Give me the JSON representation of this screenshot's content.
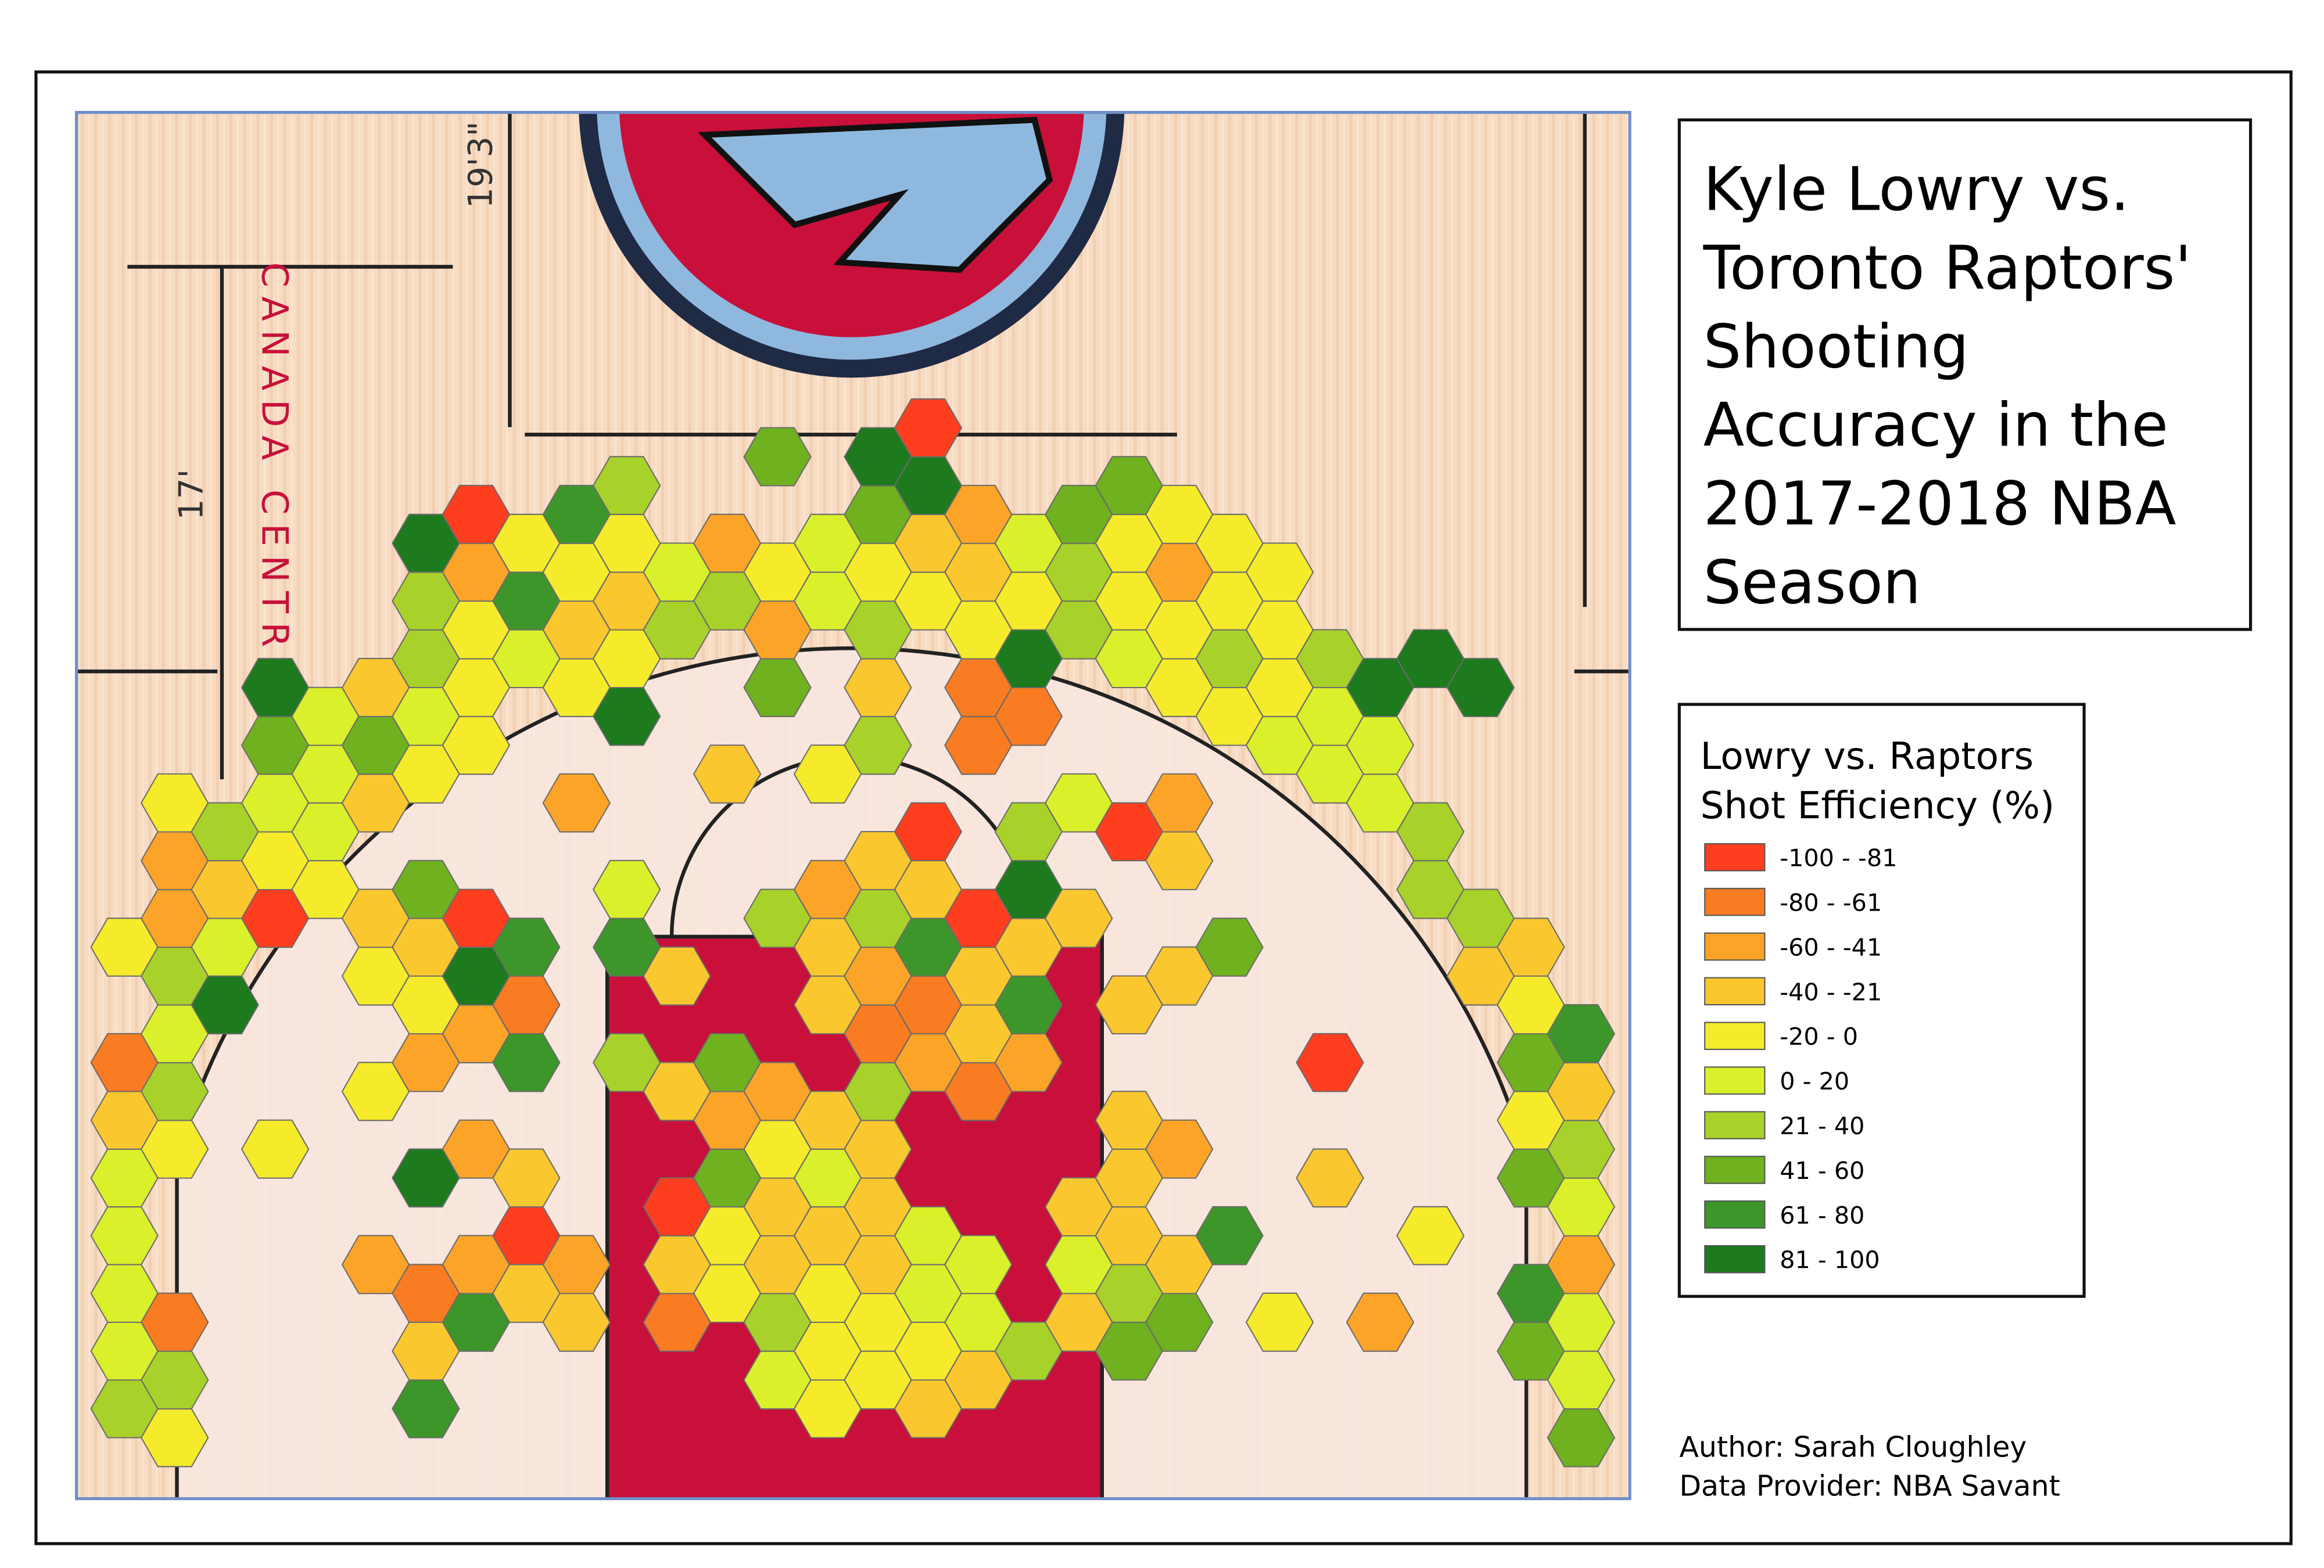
{
  "title_lines": [
    "Kyle Lowry vs.",
    "Toronto Raptors'",
    "Shooting",
    "Accuracy in the",
    "2017-2018 NBA",
    "Season"
  ],
  "legend": {
    "title_lines": [
      "Lowry vs. Raptors",
      "Shot Efficiency (%)"
    ],
    "classes": [
      {
        "label": "-100 - -81",
        "color": "#ff3d1f"
      },
      {
        "label": "-80 - -61",
        "color": "#f97b22"
      },
      {
        "label": "-60 - -41",
        "color": "#fba428"
      },
      {
        "label": "-40 - -21",
        "color": "#fbc72e"
      },
      {
        "label": "-20 - 0",
        "color": "#f5eb2b"
      },
      {
        "label": "0 - 20",
        "color": "#d9f02b"
      },
      {
        "label": "21 - 40",
        "color": "#a8d12a"
      },
      {
        "label": "41 - 60",
        "color": "#6fb11f"
      },
      {
        "label": "61 - 80",
        "color": "#3d9629"
      },
      {
        "label": "81 - 100",
        "color": "#1d7a1d"
      }
    ]
  },
  "credits": [
    "Author: Sarah Cloughley",
    "Data Provider: NBA Savant"
  ],
  "court_labels": [
    "19'3\"",
    "17'",
    "CANADA CENTRE"
  ],
  "hex_columns": [
    [
      6,
      5,
      5,
      5,
      5,
      3,
      1,
      null,
      4
    ],
    [
      4,
      6,
      1,
      null,
      null,
      4,
      6,
      5,
      6,
      2,
      2,
      4
    ],
    [
      null,
      null,
      null,
      null,
      null,
      null,
      null,
      9,
      5,
      3,
      6
    ],
    [
      null,
      null,
      null,
      null,
      null,
      4,
      null,
      null,
      null,
      0,
      4,
      5,
      7,
      9
    ],
    [
      null,
      null,
      null,
      null,
      null,
      null,
      null,
      null,
      null,
      4,
      5,
      5,
      5
    ],
    [
      null,
      null,
      null,
      2,
      null,
      null,
      4,
      null,
      4,
      3,
      null,
      3,
      7,
      3
    ],
    [
      8,
      3,
      1,
      null,
      9,
      null,
      2,
      4,
      3,
      7,
      null,
      4,
      5,
      6,
      6,
      9
    ],
    [
      null,
      null,
      8,
      2,
      null,
      2,
      null,
      2,
      9,
      0,
      null,
      null,
      4,
      4,
      4,
      2,
      0
    ],
    [
      null,
      null,
      3,
      0,
      3,
      null,
      8,
      1,
      8,
      null,
      null,
      null,
      null,
      5,
      8,
      4
    ],
    [
      null,
      null,
      3,
      2,
      null,
      null,
      null,
      null,
      null,
      null,
      null,
      2,
      null,
      4,
      3,
      4,
      8
    ],
    [
      null,
      null,
      null,
      null,
      null,
      null,
      6,
      null,
      8,
      5,
      null,
      null,
      9,
      4,
      3,
      4,
      6
    ],
    [
      null,
      null,
      1,
      3,
      0,
      null,
      3,
      null,
      3,
      null,
      null,
      null,
      null,
      null,
      6,
      5
    ],
    [
      null,
      null,
      4,
      4,
      7,
      2,
      7,
      null,
      null,
      null,
      null,
      3,
      null,
      null,
      6,
      2
    ],
    [
      null,
      5,
      6,
      3,
      3,
      4,
      2,
      null,
      null,
      6,
      null,
      null,
      null,
      7,
      2,
      4,
      null,
      7
    ],
    [
      4,
      4,
      4,
      3,
      5,
      3,
      null,
      3,
      3,
      2,
      null,
      4,
      null,
      null,
      5,
      5
    ],
    [
      null,
      4,
      4,
      3,
      3,
      3,
      6,
      1,
      2,
      6,
      3,
      null,
      6,
      3,
      6,
      4,
      7,
      9
    ],
    [
      3,
      4,
      5,
      5,
      null,
      null,
      2,
      1,
      8,
      3,
      0,
      null,
      null,
      null,
      4,
      3,
      9,
      0
    ],
    [
      null,
      3,
      5,
      5,
      null,
      null,
      1,
      3,
      3,
      0,
      null,
      null,
      1,
      1,
      4,
      3,
      2
    ],
    [
      null,
      6,
      null,
      null,
      null,
      null,
      2,
      8,
      3,
      9,
      6,
      null,
      1,
      9,
      4,
      5
    ],
    [
      null,
      null,
      3,
      5,
      3,
      null,
      null,
      null,
      null,
      3,
      null,
      5,
      null,
      null,
      6,
      6,
      7
    ],
    [
      null,
      7,
      6,
      3,
      3,
      3,
      null,
      3,
      null,
      null,
      0,
      null,
      null,
      5,
      4,
      4,
      7
    ],
    [
      null,
      null,
      7,
      3,
      null,
      2,
      null,
      null,
      3,
      null,
      3,
      2,
      null,
      4,
      4,
      2,
      4
    ],
    [
      null,
      null,
      null,
      8,
      null,
      null,
      null,
      null,
      7,
      null,
      null,
      null,
      4,
      6,
      4,
      4
    ],
    [
      null,
      null,
      4,
      null,
      null,
      null,
      null,
      null,
      null,
      null,
      null,
      null,
      5,
      4,
      4,
      4
    ],
    [
      null,
      null,
      null,
      null,
      3,
      null,
      0,
      null,
      null,
      null,
      null,
      5,
      5,
      6
    ],
    [
      null,
      null,
      2,
      null,
      null,
      null,
      null,
      null,
      null,
      null,
      null,
      5,
      5,
      9
    ],
    [
      null,
      null,
      null,
      4,
      null,
      null,
      null,
      null,
      null,
      6,
      6,
      null,
      null,
      9
    ],
    [
      null,
      null,
      null,
      null,
      null,
      null,
      null,
      null,
      3,
      6,
      null,
      null,
      null,
      9
    ],
    [
      null,
      7,
      8,
      null,
      7,
      4,
      7,
      4,
      3
    ],
    [
      7,
      5,
      5,
      2,
      5,
      6,
      3,
      8
    ]
  ]
}
